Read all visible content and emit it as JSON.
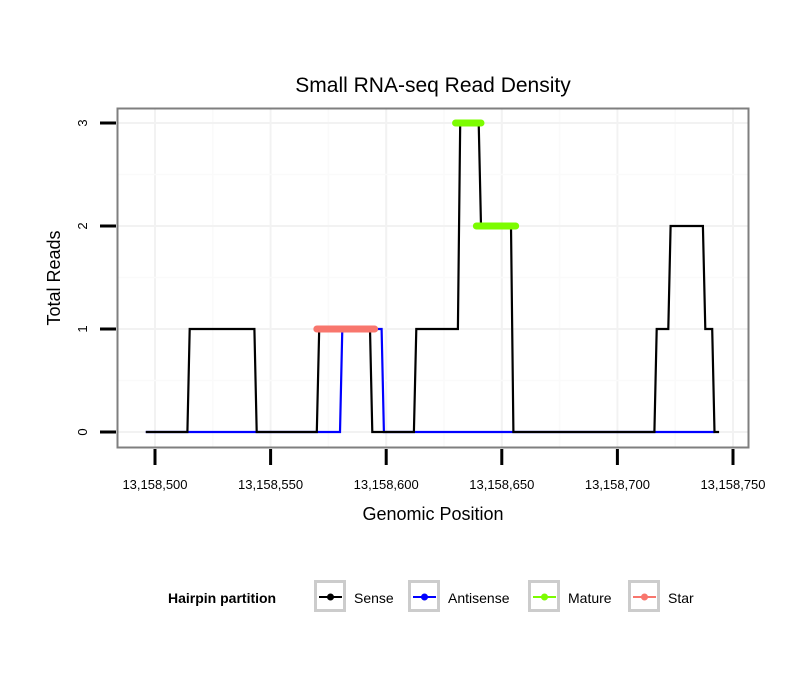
{
  "chart_data": {
    "type": "line",
    "title": "Small RNA-seq Read Density",
    "xlabel": "Genomic Position",
    "ylabel": "Total Reads",
    "xlim": [
      13158485,
      13158755
    ],
    "ylim": [
      -0.15,
      3.15
    ],
    "grid": true,
    "x_ticks": [
      13158500,
      13158550,
      13158600,
      13158650,
      13158700,
      13158750
    ],
    "x_tick_labels": [
      "13,158,500",
      "13,158,550",
      "13,158,600",
      "13,158,650",
      "13,158,700",
      "13,158,750"
    ],
    "y_ticks": [
      0,
      1,
      2,
      3
    ],
    "y_tick_labels": [
      "0",
      "1",
      "2",
      "3"
    ],
    "legend": {
      "title": "Hairpin partition",
      "position": "bottom",
      "entries": [
        "Sense",
        "Antisense",
        "Mature",
        "Star"
      ]
    },
    "series": [
      {
        "name": "Antisense",
        "color": "#0000ff",
        "step_points": [
          [
            13158496,
            0
          ],
          [
            13158580,
            0
          ],
          [
            13158581,
            1
          ],
          [
            13158598,
            1
          ],
          [
            13158599,
            0
          ],
          [
            13158742,
            0
          ]
        ]
      },
      {
        "name": "Sense",
        "color": "#000000",
        "step_points": [
          [
            13158496,
            0
          ],
          [
            13158514,
            0
          ],
          [
            13158515,
            1
          ],
          [
            13158543,
            1
          ],
          [
            13158544,
            0
          ],
          [
            13158570,
            0
          ],
          [
            13158571,
            1
          ],
          [
            13158593,
            1
          ],
          [
            13158594,
            0
          ],
          [
            13158612,
            0
          ],
          [
            13158613,
            1
          ],
          [
            13158631,
            1
          ],
          [
            13158632,
            3
          ],
          [
            13158640,
            3
          ],
          [
            13158641,
            2
          ],
          [
            13158654,
            2
          ],
          [
            13158655,
            0
          ],
          [
            13158716,
            0
          ],
          [
            13158717,
            1
          ],
          [
            13158722,
            1
          ],
          [
            13158723,
            2
          ],
          [
            13158737,
            2
          ],
          [
            13158738,
            1
          ],
          [
            13158741,
            1
          ],
          [
            13158742,
            0
          ],
          [
            13158744,
            0
          ]
        ]
      },
      {
        "name": "Star",
        "color": "#f8766d",
        "segments": [
          [
            13158570,
            13158595,
            1
          ]
        ]
      },
      {
        "name": "Mature",
        "color": "#7cfc00",
        "segments": [
          [
            13158630,
            13158641,
            3
          ],
          [
            13158639,
            13158656,
            2
          ]
        ]
      }
    ]
  }
}
